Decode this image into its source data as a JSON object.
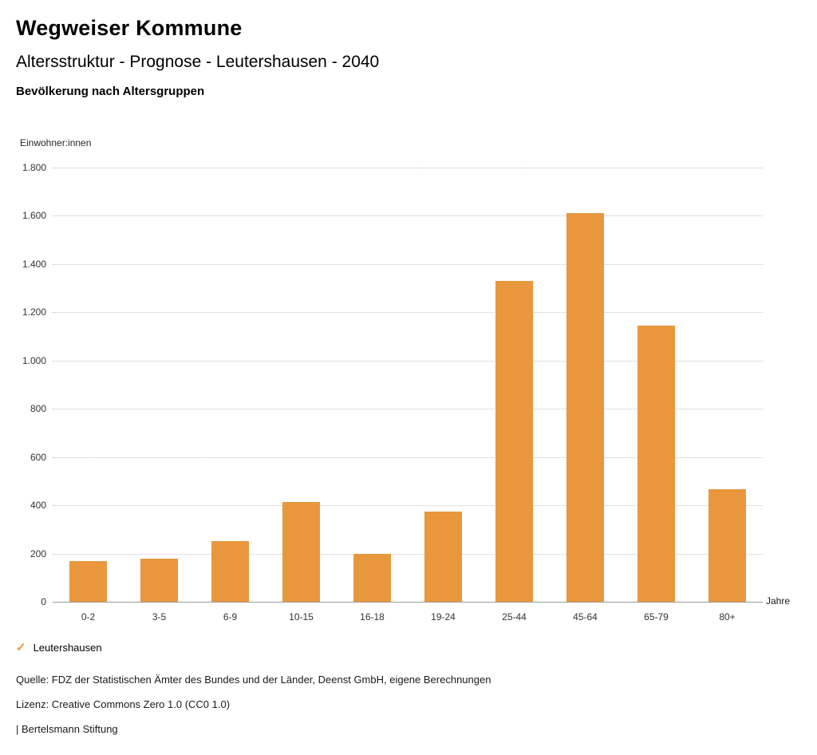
{
  "header": {
    "title": "Wegweiser Kommune",
    "subtitle": "Altersstruktur - Prognose - Leutershausen - 2040",
    "chart_heading": "Bevölkerung nach Altersgruppen"
  },
  "chart_data": {
    "type": "bar",
    "title": "Bevölkerung nach Altersgruppen",
    "categories": [
      "0-2",
      "3-5",
      "6-9",
      "10-15",
      "16-18",
      "19-24",
      "25-44",
      "45-64",
      "65-79",
      "80+"
    ],
    "series": [
      {
        "name": "Leutershausen",
        "values": [
          170,
          180,
          250,
          415,
          200,
          375,
          1330,
          1610,
          1145,
          465
        ]
      }
    ],
    "xlabel": "Jahre",
    "ylabel": "Einwohner:innen",
    "ylim": [
      0,
      1800
    ],
    "ytick_step": 200,
    "ytick_labels": [
      "0",
      "200",
      "400",
      "600",
      "800",
      "1.000",
      "1.200",
      "1.400",
      "1.600",
      "1.800"
    ],
    "grid": "horizontal-dotted",
    "legend_position": "bottom-left",
    "bar_color": "#E8973D"
  },
  "legend": {
    "check_icon": "✓",
    "label": "Leutershausen"
  },
  "footer": {
    "source": "Quelle: FDZ der Statistischen Ämter des Bundes und der Länder, Deenst GmbH, eigene Berechnungen",
    "license": "Lizenz: Creative Commons Zero 1.0 (CC0 1.0)",
    "attribution": "| Bertelsmann Stiftung"
  },
  "colors": {
    "accent": "#E8973D"
  }
}
